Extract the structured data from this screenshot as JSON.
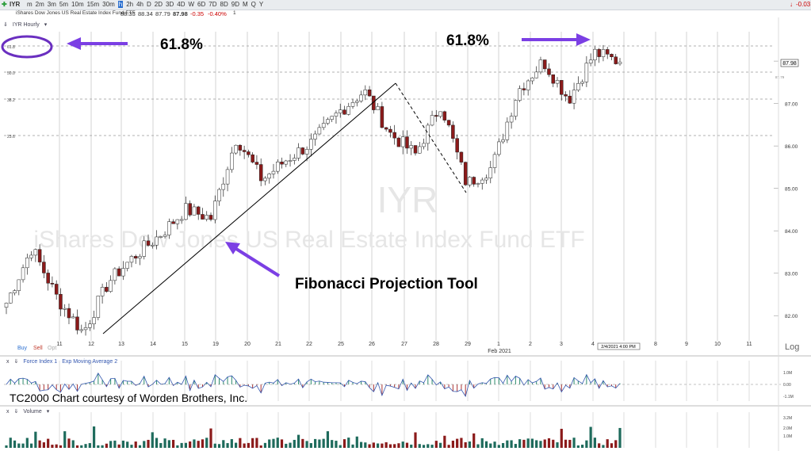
{
  "toolbar": {
    "symbol": "IYR",
    "timeframes": [
      "m",
      "2m",
      "3m",
      "5m",
      "10m",
      "15m",
      "30m",
      "h",
      "2h",
      "4h",
      "D",
      "2D",
      "3D",
      "4D",
      "W",
      "6D",
      "7D",
      "8D",
      "9D",
      "M",
      "Q",
      "Y"
    ],
    "active_timeframe": "h",
    "right_change": "-0.03"
  },
  "infobar": {
    "name": "iShares Dow Jones US Real Estate Index Fund ETF",
    "open": "88.33",
    "high": "88.34",
    "low": "87.79",
    "close": "87.98",
    "change": "-0.35",
    "change_pct": "-0.40%",
    "count": "1"
  },
  "price_panel": {
    "header": "IYR Hourly",
    "watermark_symbol": "IYR",
    "watermark_name": "iShares Dow Jones US Real Estate Index Fund ETF",
    "fib_levels": [
      "61.8",
      "50.0",
      "38.2",
      "23.6"
    ],
    "last_price_tag": "87.98",
    "small_tag": "87.79",
    "y_ticks": [
      "88.00",
      "87.00",
      "86.00",
      "85.00",
      "84.00",
      "83.00",
      "82.00"
    ],
    "x_labels": [
      "11",
      "12",
      "13",
      "14",
      "15",
      "19",
      "20",
      "21",
      "22",
      "25",
      "26",
      "27",
      "28",
      "29",
      "1",
      "2",
      "3",
      "4",
      "8",
      "9",
      "10",
      "11"
    ],
    "month_label": "Feb 2021",
    "date_tag": "2/4/2021 4:00 PM",
    "log_label": "Log",
    "buy": "Buy",
    "sell": "Sell",
    "opt": "Opt"
  },
  "annotations": {
    "fib_left": "61.8%",
    "fib_right": "61.8%",
    "tool_label": "Fibonacci Projection Tool"
  },
  "force_panel": {
    "header_a": "Force Index 1",
    "header_b": "Exp Moving Average 2",
    "ticks": [
      "1.0M",
      "0.00",
      "-1.1M"
    ],
    "credit": "TC2000 Chart courtesy of Worden Brothers, Inc."
  },
  "volume_panel": {
    "header": "Volume",
    "ticks": [
      "3.2M",
      "2.0M",
      "1.0M"
    ]
  },
  "colors": {
    "up": "#ffffff",
    "down": "#8b1a1a",
    "arrow": "#7b3fe4",
    "volume_up": "#1e6b5c",
    "volume_down": "#8b1a1a",
    "force_line": "#3558b0"
  },
  "chart_data": {
    "type": "candlestick",
    "symbol": "IYR",
    "timeframe": "Hourly",
    "ylim": [
      81.5,
      88.6
    ],
    "close_path": [
      {
        "session": "11",
        "price": 82.3
      },
      {
        "session": "11",
        "price": 83.6
      },
      {
        "session": "12",
        "price": 82.4
      },
      {
        "session": "12",
        "price": 81.6
      },
      {
        "session": "13",
        "price": 82.8
      },
      {
        "session": "14",
        "price": 83.4
      },
      {
        "session": "15",
        "price": 83.9
      },
      {
        "session": "19",
        "price": 84.5
      },
      {
        "session": "20",
        "price": 84.3
      },
      {
        "session": "20",
        "price": 86.2
      },
      {
        "session": "21",
        "price": 85.2
      },
      {
        "session": "22",
        "price": 85.7
      },
      {
        "session": "25",
        "price": 86.1
      },
      {
        "session": "26",
        "price": 86.8
      },
      {
        "session": "26",
        "price": 87.3
      },
      {
        "session": "27",
        "price": 86.3
      },
      {
        "session": "28",
        "price": 85.8
      },
      {
        "session": "28",
        "price": 87.0
      },
      {
        "session": "29",
        "price": 85.1
      },
      {
        "session": "1",
        "price": 85.5
      },
      {
        "session": "2",
        "price": 87.3
      },
      {
        "session": "2",
        "price": 88.0
      },
      {
        "session": "3",
        "price": 87.1
      },
      {
        "session": "4",
        "price": 88.2
      },
      {
        "session": "4",
        "price": 87.98
      }
    ],
    "last": {
      "open": 88.33,
      "high": 88.34,
      "low": 87.79,
      "close": 87.98
    }
  }
}
